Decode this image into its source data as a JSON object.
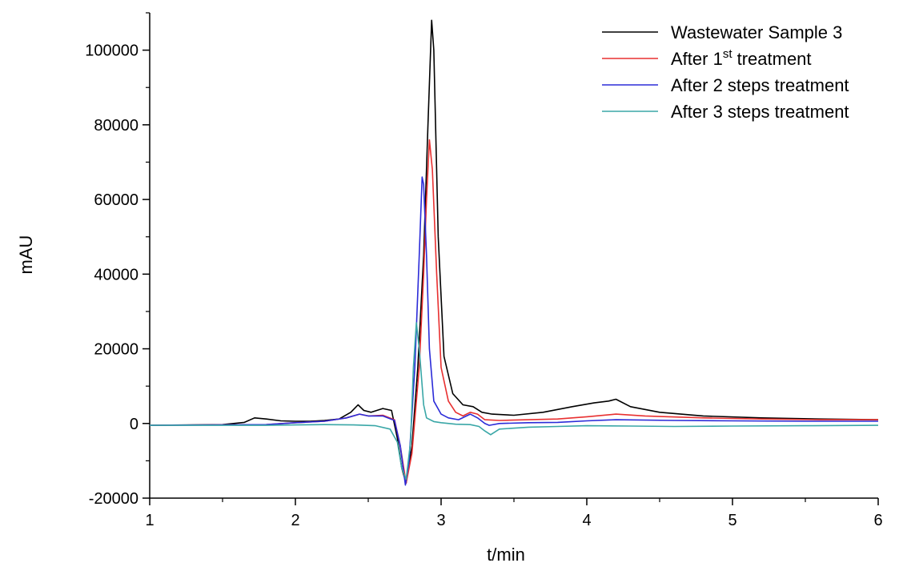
{
  "chart_data": {
    "type": "line",
    "xlabel": "t/min",
    "ylabel": "mAU",
    "xlim": [
      1,
      6
    ],
    "ylim": [
      -20000,
      110000
    ],
    "x_ticks": [
      1,
      2,
      3,
      4,
      5,
      6
    ],
    "x_tick_labels": [
      "1",
      "2",
      "3",
      "4",
      "5",
      "6"
    ],
    "y_ticks": [
      -20000,
      0,
      20000,
      40000,
      60000,
      80000,
      100000
    ],
    "y_tick_labels": [
      "-20000",
      "0",
      "20000",
      "40000",
      "60000",
      "80000",
      "100000"
    ],
    "grid": false,
    "legend_position": "top-right",
    "series": [
      {
        "name": "Wastewater Sample 3",
        "color": "#000000",
        "x": [
          1.0,
          1.5,
          1.65,
          1.72,
          1.8,
          1.9,
          2.0,
          2.1,
          2.2,
          2.3,
          2.38,
          2.43,
          2.47,
          2.52,
          2.6,
          2.66,
          2.7,
          2.73,
          2.76,
          2.8,
          2.84,
          2.88,
          2.91,
          2.935,
          2.95,
          2.98,
          3.02,
          3.08,
          3.15,
          3.22,
          3.28,
          3.35,
          3.5,
          3.7,
          3.9,
          4.05,
          4.15,
          4.2,
          4.3,
          4.5,
          4.8,
          5.2,
          5.6,
          6.0
        ],
        "y": [
          -500,
          -300,
          300,
          1500,
          1200,
          700,
          600,
          600,
          800,
          1200,
          3000,
          5000,
          3500,
          3000,
          4000,
          3500,
          -4000,
          -12000,
          -16000,
          -6000,
          15000,
          45000,
          80000,
          108000,
          100000,
          50000,
          18000,
          8000,
          5000,
          4500,
          3000,
          2500,
          2200,
          3000,
          4500,
          5500,
          6000,
          6500,
          4500,
          3000,
          2000,
          1500,
          1200,
          1000
        ]
      },
      {
        "name": "After 1st treatment",
        "color": "#e83030",
        "x": [
          1.0,
          1.8,
          2.0,
          2.2,
          2.35,
          2.44,
          2.5,
          2.6,
          2.68,
          2.72,
          2.76,
          2.8,
          2.85,
          2.88,
          2.9,
          2.92,
          2.94,
          2.97,
          3.0,
          3.05,
          3.1,
          3.15,
          3.2,
          3.25,
          3.3,
          3.4,
          3.6,
          3.8,
          4.0,
          4.2,
          4.4,
          4.8,
          5.2,
          5.6,
          6.0
        ],
        "y": [
          -500,
          -300,
          200,
          600,
          1500,
          2500,
          2000,
          2200,
          1000,
          -6000,
          -16000,
          -8000,
          15000,
          40000,
          60000,
          76000,
          68000,
          40000,
          15000,
          6000,
          3000,
          2000,
          3000,
          2500,
          1000,
          800,
          1000,
          1200,
          1800,
          2500,
          2000,
          1500,
          1200,
          1000,
          1000
        ]
      },
      {
        "name": "After 2 steps treatment",
        "color": "#2b2bd8",
        "x": [
          1.0,
          1.8,
          2.0,
          2.2,
          2.35,
          2.44,
          2.5,
          2.6,
          2.68,
          2.72,
          2.755,
          2.78,
          2.82,
          2.85,
          2.87,
          2.88,
          2.9,
          2.92,
          2.95,
          3.0,
          3.05,
          3.12,
          3.2,
          3.25,
          3.3,
          3.33,
          3.4,
          3.6,
          3.8,
          4.0,
          4.2,
          4.6,
          5.0,
          5.5,
          6.0
        ],
        "y": [
          -500,
          -300,
          200,
          600,
          1500,
          2500,
          2000,
          2000,
          800,
          -6000,
          -16500,
          -10000,
          15000,
          45000,
          66000,
          64000,
          45000,
          20000,
          6000,
          2500,
          1500,
          1000,
          2500,
          1500,
          0,
          -500,
          0,
          200,
          300,
          700,
          1000,
          800,
          700,
          600,
          600
        ]
      },
      {
        "name": "After 3 steps treatment",
        "color": "#3aa7a7",
        "x": [
          1.0,
          1.8,
          2.0,
          2.2,
          2.4,
          2.55,
          2.65,
          2.7,
          2.73,
          2.76,
          2.79,
          2.81,
          2.83,
          2.85,
          2.88,
          2.9,
          2.95,
          3.0,
          3.1,
          3.2,
          3.26,
          3.3,
          3.34,
          3.4,
          3.6,
          3.8,
          4.0,
          4.3,
          4.6,
          5.0,
          5.5,
          6.0
        ],
        "y": [
          -500,
          -500,
          -400,
          -300,
          -400,
          -600,
          -1500,
          -5000,
          -12000,
          -15000,
          -5000,
          15000,
          27000,
          20000,
          5000,
          1500,
          500,
          200,
          -200,
          -300,
          -800,
          -2000,
          -3000,
          -1500,
          -1000,
          -800,
          -600,
          -700,
          -800,
          -700,
          -600,
          -500
        ]
      }
    ]
  },
  "legend": {
    "items": [
      {
        "label": "Wastewater Sample 3"
      },
      {
        "prefix": "After 1",
        "superscript": "st",
        "suffix": " treatment"
      },
      {
        "label": "After 2 steps treatment"
      },
      {
        "label": "After 3 steps treatment"
      }
    ]
  }
}
